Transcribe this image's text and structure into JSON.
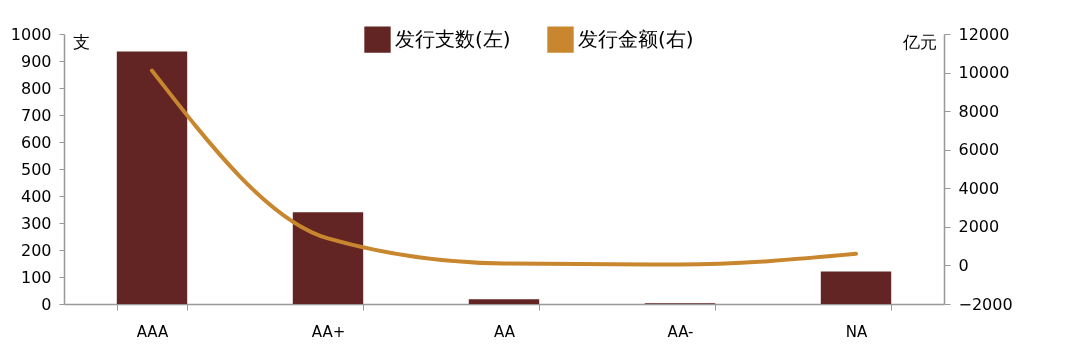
{
  "chart_data": {
    "type": "bar",
    "ylabel": "支",
    "y2label": "亿元",
    "categories": [
      "AAA",
      "AA+",
      "AA",
      "AA-",
      "NA"
    ],
    "series": [
      {
        "name": "发行支数(左)",
        "color": "#632523",
        "values": [
          935,
          340,
          18,
          3,
          120
        ]
      },
      {
        "name": "发行金额(右)",
        "type": "line",
        "axis": "y2",
        "color": "#c8862e",
        "values": [
          10100,
          1400,
          100,
          50,
          600
        ]
      }
    ],
    "ylim": [
      0,
      1000
    ],
    "yticks": [
      0,
      100,
      200,
      300,
      400,
      500,
      600,
      700,
      800,
      900,
      1000
    ],
    "y2lim": [
      -2000,
      12000
    ],
    "y2ticks": [
      -2000,
      0,
      2000,
      4000,
      6000,
      8000,
      10000,
      12000
    ],
    "grid": false,
    "legend": "top",
    "marker": "none"
  }
}
